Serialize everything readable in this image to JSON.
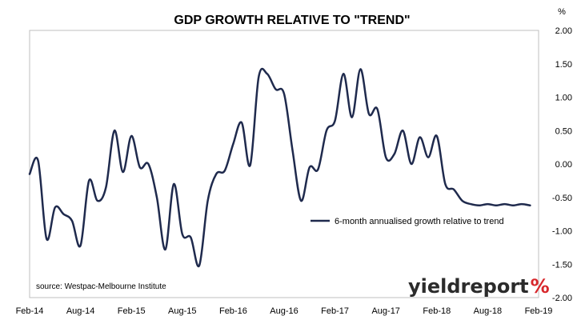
{
  "chart_data": {
    "type": "line",
    "title": "GDP GROWTH RELATIVE TO \"TREND\"",
    "ylabel": "%",
    "xlabel": "",
    "ylim": [
      -2.0,
      2.0
    ],
    "y_ticks": [
      "2.00",
      "1.50",
      "1.00",
      "0.50",
      "0.00",
      "-0.50",
      "-1.00",
      "-1.50",
      "-2.00"
    ],
    "y_tick_values": [
      2.0,
      1.5,
      1.0,
      0.5,
      0.0,
      -0.5,
      -1.0,
      -1.5,
      -2.0
    ],
    "x_ticks": [
      "Feb-14",
      "Aug-14",
      "Feb-15",
      "Aug-15",
      "Feb-16",
      "Aug-16",
      "Feb-17",
      "Aug-17",
      "Feb-18",
      "Aug-18",
      "Feb-19"
    ],
    "x_range_months": [
      0,
      60
    ],
    "legend_position": "center-right",
    "grid": false,
    "series": [
      {
        "name": "6-month annualised growth relative to trend",
        "color": "#1f2a4d",
        "x": [
          0,
          1,
          2,
          3,
          4,
          5,
          6,
          7,
          8,
          9,
          10,
          11,
          12,
          13,
          14,
          15,
          16,
          17,
          18,
          19,
          20,
          21,
          22,
          23,
          24,
          25,
          26,
          27,
          28,
          29,
          30,
          31,
          32,
          33,
          34,
          35,
          36,
          37,
          38,
          39,
          40,
          41,
          42,
          43,
          44,
          45,
          46,
          47,
          48,
          49,
          50,
          51,
          52,
          53,
          54,
          55,
          56,
          57,
          58,
          59
        ],
        "y": [
          -0.15,
          0.05,
          -1.12,
          -0.65,
          -0.75,
          -0.85,
          -1.22,
          -0.25,
          -0.55,
          -0.35,
          0.5,
          -0.12,
          0.42,
          -0.05,
          0.0,
          -0.5,
          -1.28,
          -0.3,
          -1.05,
          -1.1,
          -1.52,
          -0.55,
          -0.15,
          -0.1,
          0.3,
          0.62,
          -0.02,
          1.3,
          1.35,
          1.12,
          1.05,
          0.2,
          -0.55,
          -0.05,
          -0.08,
          0.5,
          0.65,
          1.35,
          0.7,
          1.42,
          0.75,
          0.82,
          0.1,
          0.15,
          0.5,
          0.0,
          0.4,
          0.1,
          0.42,
          -0.3,
          -0.38,
          -0.55,
          -0.6,
          -0.62,
          -0.6,
          -0.62,
          -0.6,
          -0.62,
          -0.6,
          -0.62
        ]
      }
    ]
  },
  "source_text": "source: Westpac-Melbourne Institute",
  "logo": {
    "text_main": "yieldreport",
    "text_pct": "%"
  }
}
